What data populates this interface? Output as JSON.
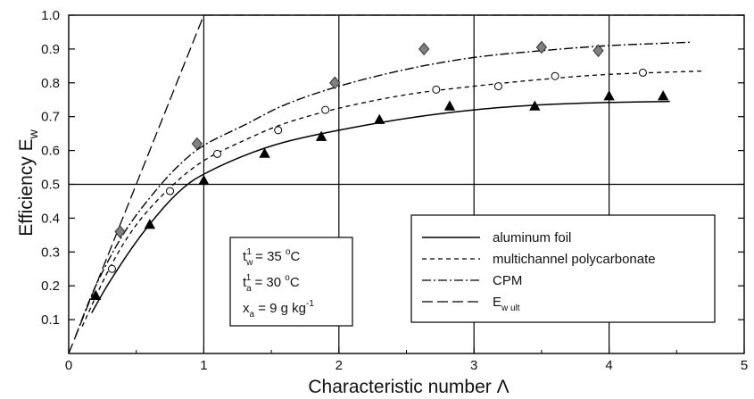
{
  "chart_data": {
    "type": "line",
    "xlabel": "Characteristic number Λ",
    "ylabel": "Efficiency Ew",
    "xlim": [
      0,
      5
    ],
    "ylim": [
      0,
      1.0
    ],
    "x_ticks": [
      "0",
      "1",
      "2",
      "3",
      "4",
      "5"
    ],
    "y_ticks": [
      "0.1",
      "0.2",
      "0.3",
      "0.4",
      "0.5",
      "0.6",
      "0.7",
      "0.8",
      "0.9",
      "1.0"
    ],
    "grid": "major lines at x = 1, 2, 3, 4 and y = 0.5",
    "legend": {
      "placement": "lower-right",
      "items": [
        {
          "label": "aluminum foil",
          "style": "solid"
        },
        {
          "label": "multichannel polycarbonate",
          "style": "dashed"
        },
        {
          "label": "CPM",
          "style": "dashdot"
        },
        {
          "label": "E",
          "sub": "w ult",
          "style": "longdash"
        }
      ]
    },
    "conditions": {
      "tw": {
        "t": "t",
        "sub": "w",
        "sup": "1",
        "rest": " = 35 ",
        "unit_sup": "o",
        "unit": "C"
      },
      "ta": {
        "t": "t",
        "sub": "a",
        "sup": "1",
        "rest": " = 30 ",
        "unit_sup": "o",
        "unit": "C"
      },
      "xa": {
        "t": "x",
        "sub": "a",
        "rest": " = 9 g kg",
        "sup": "-1"
      }
    },
    "series": [
      {
        "name": "aluminum foil",
        "line_style": "solid",
        "marker": "triangle",
        "marker_color": "#000000",
        "points": [
          [
            0.2,
            0.17
          ],
          [
            0.6,
            0.38
          ],
          [
            1.0,
            0.51
          ],
          [
            1.45,
            0.59
          ],
          [
            1.87,
            0.64
          ],
          [
            2.3,
            0.69
          ],
          [
            2.82,
            0.73
          ],
          [
            3.45,
            0.73
          ],
          [
            4.0,
            0.76
          ],
          [
            4.4,
            0.76
          ]
        ],
        "curve": [
          [
            0.17,
            0.12
          ],
          [
            0.3,
            0.21
          ],
          [
            0.5,
            0.33
          ],
          [
            0.7,
            0.43
          ],
          [
            0.85,
            0.49
          ],
          [
            1.0,
            0.53
          ],
          [
            1.3,
            0.585
          ],
          [
            1.6,
            0.625
          ],
          [
            2.0,
            0.66
          ],
          [
            2.5,
            0.695
          ],
          [
            3.0,
            0.72
          ],
          [
            3.5,
            0.735
          ],
          [
            4.0,
            0.742
          ],
          [
            4.45,
            0.745
          ]
        ]
      },
      {
        "name": "multichannel polycarbonate",
        "line_style": "dashed",
        "marker": "circle",
        "marker_color": "#ffffff",
        "points": [
          [
            0.32,
            0.25
          ],
          [
            0.75,
            0.48
          ],
          [
            1.1,
            0.59
          ],
          [
            1.55,
            0.66
          ],
          [
            1.9,
            0.72
          ],
          [
            2.72,
            0.78
          ],
          [
            3.18,
            0.79
          ],
          [
            3.6,
            0.82
          ],
          [
            4.25,
            0.83
          ]
        ],
        "curve": [
          [
            0.1,
            0.08
          ],
          [
            0.3,
            0.25
          ],
          [
            0.5,
            0.38
          ],
          [
            0.75,
            0.49
          ],
          [
            1.0,
            0.57
          ],
          [
            1.3,
            0.63
          ],
          [
            1.6,
            0.68
          ],
          [
            2.0,
            0.725
          ],
          [
            2.5,
            0.765
          ],
          [
            3.0,
            0.79
          ],
          [
            3.5,
            0.81
          ],
          [
            4.0,
            0.825
          ],
          [
            4.7,
            0.835
          ]
        ]
      },
      {
        "name": "CPM",
        "line_style": "dashdot",
        "marker": "diamond",
        "marker_color": "#808080",
        "points": [
          [
            0.38,
            0.36
          ],
          [
            0.95,
            0.62
          ],
          [
            1.97,
            0.8
          ],
          [
            2.63,
            0.9
          ],
          [
            3.5,
            0.905
          ],
          [
            3.92,
            0.895
          ]
        ],
        "curve": [
          [
            0.05,
            0.05
          ],
          [
            0.2,
            0.2
          ],
          [
            0.4,
            0.35
          ],
          [
            0.6,
            0.46
          ],
          [
            0.8,
            0.55
          ],
          [
            1.0,
            0.615
          ],
          [
            1.3,
            0.675
          ],
          [
            1.6,
            0.735
          ],
          [
            2.0,
            0.79
          ],
          [
            2.5,
            0.84
          ],
          [
            3.0,
            0.875
          ],
          [
            3.5,
            0.895
          ],
          [
            4.0,
            0.91
          ],
          [
            4.6,
            0.92
          ]
        ]
      },
      {
        "name": "Ew ult",
        "line_style": "longdash",
        "marker": "none",
        "curve": [
          [
            0,
            0
          ],
          [
            1.0,
            1.0
          ],
          [
            5,
            1.0
          ]
        ]
      }
    ]
  }
}
